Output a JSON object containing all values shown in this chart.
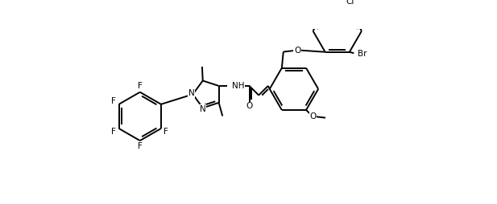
{
  "bg_color": "#ffffff",
  "line_color": "#000000",
  "lw": 1.4,
  "fs": 7.5,
  "figsize": [
    6.17,
    2.54
  ],
  "dpi": 100,
  "xlim": [
    0.0,
    10.2
  ],
  "ylim": [
    -2.8,
    2.8
  ]
}
